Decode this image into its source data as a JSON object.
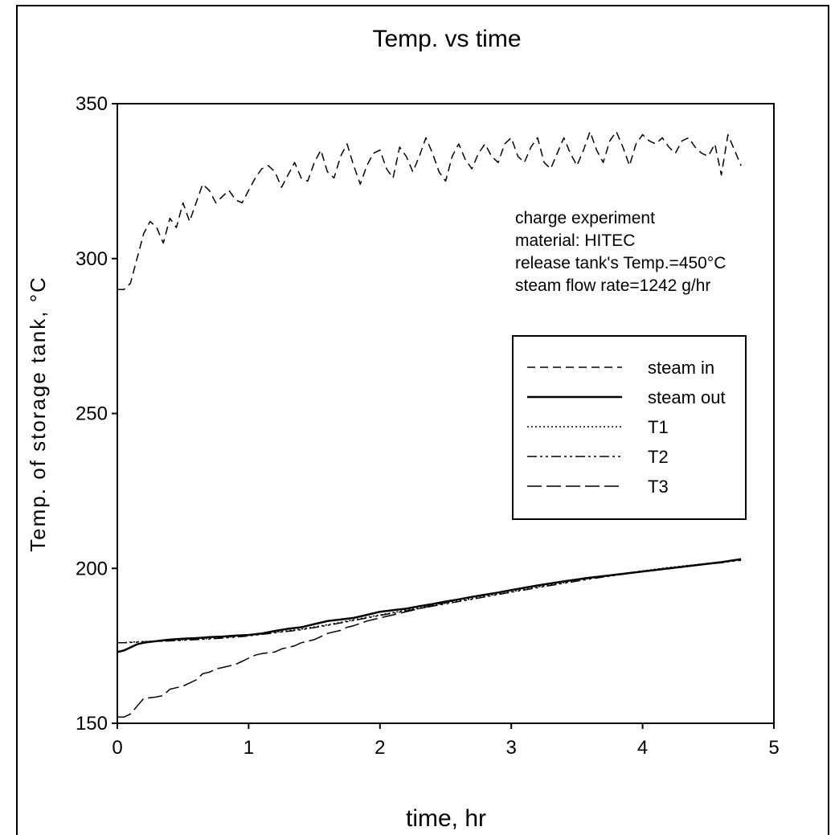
{
  "chart_data": {
    "type": "line",
    "title": "Temp. vs time",
    "xlabel": "time, hr",
    "ylabel": "Temp. of storage tank, °C",
    "xlim": [
      0,
      5
    ],
    "ylim": [
      150,
      350
    ],
    "xticks": [
      "0",
      "1",
      "2",
      "3",
      "4",
      "5"
    ],
    "yticks": [
      "150",
      "200",
      "250",
      "300",
      "350"
    ],
    "grid": false,
    "legend_position": "right",
    "annotation": [
      "charge experiment",
      "material: HITEC",
      "release tank's Temp.=450°C",
      "steam flow rate=1242 g/hr"
    ],
    "series": [
      {
        "name": "steam in",
        "x": [
          0,
          0.05,
          0.1,
          0.15,
          0.2,
          0.25,
          0.3,
          0.35,
          0.4,
          0.45,
          0.5,
          0.55,
          0.6,
          0.65,
          0.7,
          0.75,
          0.8,
          0.85,
          0.9,
          0.95,
          1.0,
          1.05,
          1.1,
          1.15,
          1.2,
          1.25,
          1.3,
          1.35,
          1.4,
          1.45,
          1.5,
          1.55,
          1.6,
          1.65,
          1.7,
          1.75,
          1.8,
          1.85,
          1.9,
          1.95,
          2.0,
          2.05,
          2.1,
          2.15,
          2.2,
          2.25,
          2.3,
          2.35,
          2.4,
          2.45,
          2.5,
          2.55,
          2.6,
          2.65,
          2.7,
          2.75,
          2.8,
          2.85,
          2.9,
          2.95,
          3.0,
          3.05,
          3.1,
          3.15,
          3.2,
          3.25,
          3.3,
          3.35,
          3.4,
          3.45,
          3.5,
          3.55,
          3.6,
          3.65,
          3.7,
          3.75,
          3.8,
          3.85,
          3.9,
          3.95,
          4.0,
          4.05,
          4.1,
          4.15,
          4.2,
          4.25,
          4.3,
          4.35,
          4.4,
          4.45,
          4.5,
          4.55,
          4.6,
          4.65,
          4.7,
          4.75
        ],
        "y": [
          290,
          290,
          292,
          300,
          308,
          312,
          310,
          305,
          313,
          310,
          318,
          312,
          318,
          324,
          322,
          318,
          320,
          322,
          319,
          318,
          322,
          326,
          329,
          330,
          328,
          323,
          327,
          331,
          326,
          325,
          331,
          335,
          328,
          326,
          333,
          337,
          330,
          324,
          330,
          334,
          335,
          329,
          326,
          336,
          333,
          328,
          333,
          339,
          334,
          328,
          325,
          333,
          337,
          332,
          329,
          334,
          337,
          333,
          331,
          337,
          339,
          333,
          331,
          336,
          339,
          331,
          329,
          334,
          339,
          334,
          330,
          335,
          341,
          335,
          331,
          338,
          341,
          336,
          330,
          337,
          340,
          338,
          337,
          339,
          336,
          334,
          338,
          339,
          336,
          334,
          333,
          337,
          327,
          340,
          335,
          330
        ]
      },
      {
        "name": "steam out",
        "x": [
          0,
          0.05,
          0.1,
          0.15,
          0.2,
          0.25,
          0.3,
          0.35,
          0.4,
          0.5,
          0.6,
          0.7,
          0.8,
          0.9,
          1.0,
          1.1,
          1.2,
          1.3,
          1.4,
          1.5,
          1.6,
          1.7,
          1.8,
          1.9,
          2.0,
          2.1,
          2.2,
          2.3,
          2.4,
          2.5,
          2.6,
          2.7,
          2.8,
          2.9,
          3.0,
          3.2,
          3.4,
          3.6,
          3.8,
          4.0,
          4.2,
          4.4,
          4.6,
          4.75
        ],
        "y": [
          173,
          173.5,
          174.5,
          175.5,
          176,
          176.3,
          176.5,
          176.8,
          177,
          177.3,
          177.5,
          177.8,
          178,
          178.3,
          178.5,
          179,
          179.8,
          180.5,
          181,
          182,
          183,
          183.5,
          184,
          185,
          186,
          186.5,
          187,
          187.8,
          188.5,
          189.3,
          190,
          190.8,
          191.5,
          192.2,
          193,
          194.5,
          195.8,
          197,
          198,
          199,
          200,
          201,
          202,
          203
        ]
      },
      {
        "name": "T1",
        "x": [
          0,
          0.05,
          0.1,
          0.2,
          0.3,
          0.4,
          0.5,
          0.6,
          0.7,
          0.8,
          0.9,
          1.0,
          1.2,
          1.4,
          1.6,
          1.8,
          2.0,
          2.2,
          2.4,
          2.6,
          2.8,
          3.0,
          3.2,
          3.4,
          3.6,
          3.8,
          4.0,
          4.2,
          4.4,
          4.6,
          4.75
        ],
        "y": [
          176,
          176,
          176.2,
          176.4,
          176.5,
          176.7,
          176.9,
          177.1,
          177.4,
          177.7,
          178,
          178.4,
          179.4,
          180.4,
          181.8,
          183.4,
          185,
          186.5,
          188,
          189.5,
          191,
          192.5,
          194,
          195.4,
          196.8,
          198,
          199.2,
          200.3,
          201.2,
          202,
          202.8
        ]
      },
      {
        "name": "T2",
        "x": [
          0,
          0.05,
          0.1,
          0.2,
          0.3,
          0.4,
          0.5,
          0.6,
          0.7,
          0.8,
          0.9,
          1.0,
          1.2,
          1.4,
          1.6,
          1.8,
          2.0,
          2.2,
          2.4,
          2.6,
          2.8,
          3.0,
          3.2,
          3.4,
          3.6,
          3.8,
          4.0,
          4.2,
          4.4,
          4.6,
          4.75
        ],
        "y": [
          176,
          176,
          176.1,
          176.3,
          176.4,
          176.6,
          176.8,
          177,
          177.2,
          177.5,
          177.8,
          178.2,
          179.2,
          180.2,
          181.6,
          183.2,
          184.8,
          186.3,
          187.8,
          189.3,
          190.8,
          192.3,
          193.8,
          195.2,
          196.6,
          197.8,
          199,
          200.1,
          201,
          201.8,
          202.6
        ]
      },
      {
        "name": "T3",
        "x": [
          0,
          0.05,
          0.1,
          0.15,
          0.2,
          0.3,
          0.35,
          0.4,
          0.45,
          0.5,
          0.55,
          0.6,
          0.65,
          0.7,
          0.75,
          0.8,
          0.85,
          0.9,
          0.95,
          1.0,
          1.05,
          1.1,
          1.2,
          1.25,
          1.3,
          1.35,
          1.4,
          1.5,
          1.55,
          1.6,
          1.7,
          1.75,
          1.8,
          1.9,
          2.0,
          2.1,
          2.2,
          2.3,
          2.4,
          2.5,
          2.6,
          2.7,
          2.8,
          3.0,
          3.2,
          3.4,
          3.6,
          3.8,
          4.0,
          4.2,
          4.4,
          4.6,
          4.75
        ],
        "y": [
          152,
          152,
          153,
          155.5,
          158,
          158.5,
          159,
          161,
          161.5,
          162,
          163,
          164,
          166,
          166.5,
          167.5,
          168,
          168.5,
          169,
          170,
          171,
          172,
          172.5,
          173,
          174,
          174.5,
          175,
          176,
          177,
          178,
          179,
          180,
          181,
          181.5,
          183,
          184,
          185,
          186,
          187,
          188,
          189,
          190,
          190.8,
          191.5,
          193,
          194.5,
          195.8,
          197,
          198,
          199,
          200,
          201,
          202,
          203
        ]
      }
    ]
  }
}
